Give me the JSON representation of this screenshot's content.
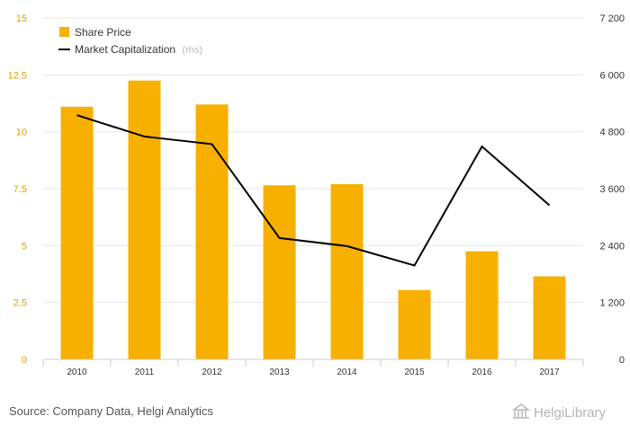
{
  "chart_data": {
    "type": "bar+line",
    "categories": [
      "2010",
      "2011",
      "2012",
      "2013",
      "2014",
      "2015",
      "2016",
      "2017"
    ],
    "series": [
      {
        "name": "Share Price",
        "type": "bar",
        "axis": "left",
        "color": "#F7B000",
        "values": [
          11.1,
          12.25,
          11.2,
          7.65,
          7.7,
          3.05,
          4.75,
          3.65
        ]
      },
      {
        "name": "Market Capitalization",
        "type": "line",
        "axis": "right",
        "color": "#000000",
        "values": [
          5150,
          4700,
          4540,
          2560,
          2390,
          1980,
          4490,
          3250
        ]
      }
    ],
    "left_axis": {
      "ylim": [
        0,
        15
      ],
      "ticks": [
        0,
        2.5,
        5,
        7.5,
        10,
        12.5,
        15
      ],
      "tick_labels": [
        "0",
        "2.5",
        "5",
        "7.5",
        "10",
        "12.5",
        "15"
      ]
    },
    "right_axis": {
      "ylim": [
        0,
        7200
      ],
      "ticks": [
        0,
        1200,
        2400,
        3600,
        4800,
        6000,
        7200
      ],
      "tick_labels": [
        "0",
        "1 200",
        "2 400",
        "3 600",
        "4 800",
        "6 000",
        "7 200"
      ]
    },
    "legend": {
      "position": "top-left",
      "share_price": "Share Price",
      "market_cap": "Market Capitalization",
      "market_cap_note": "(rhs)"
    },
    "grid": true
  },
  "footer": {
    "source": "Source: Company Data, Helgi Analytics",
    "logo_text": "HelgiLibrary"
  }
}
